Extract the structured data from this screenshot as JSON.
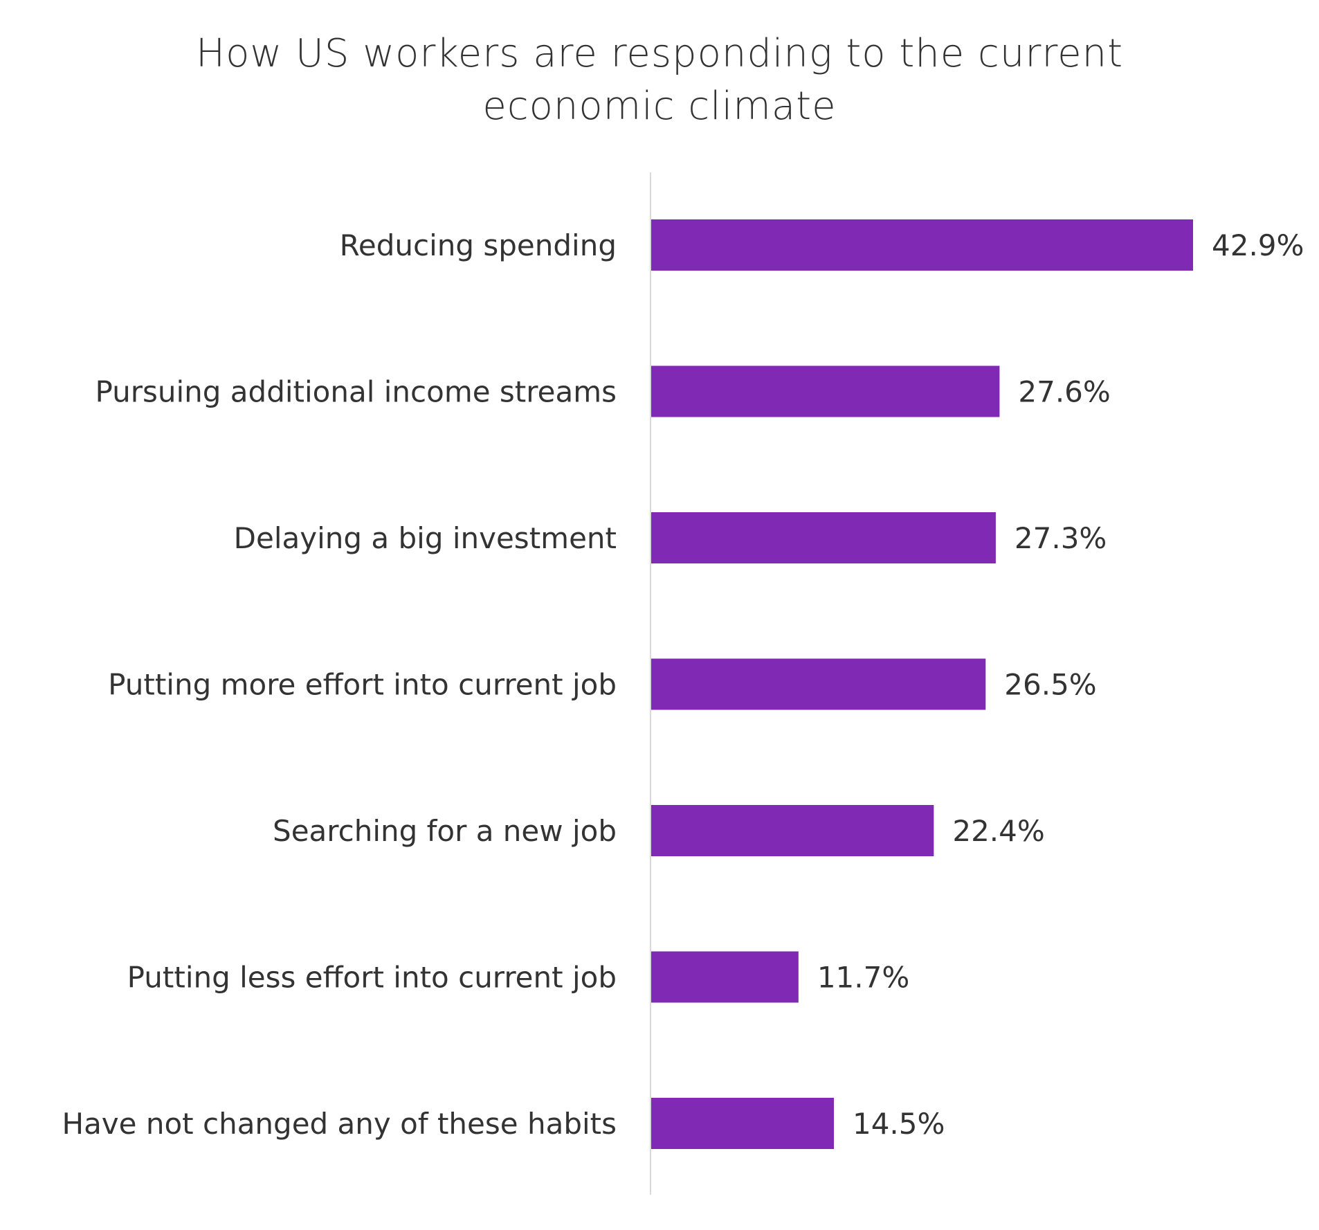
{
  "chart_data": {
    "type": "bar",
    "orientation": "horizontal",
    "title": "How US workers are responding to the current economic climate",
    "title_lines": [
      "How US workers are responding to the current",
      "economic climate"
    ],
    "categories": [
      "Reducing spending",
      "Pursuing additional income streams",
      "Delaying a big investment",
      "Putting more effort into current job",
      "Searching for a new job",
      "Putting less effort into current job",
      "Have not changed any of these habits"
    ],
    "values": [
      42.9,
      27.6,
      27.3,
      26.5,
      22.4,
      11.7,
      14.5
    ],
    "data_labels": [
      "42.9%",
      "27.6%",
      "27.3%",
      "26.5%",
      "22.4%",
      "11.7%",
      "14.5%"
    ],
    "xlabel": "",
    "ylabel": "",
    "xlim": [
      0,
      42.9
    ],
    "grid": false,
    "legend": "none",
    "bar_color": "#8029b5",
    "axis_color": "#d9d9d9",
    "text_color": "#333333"
  }
}
